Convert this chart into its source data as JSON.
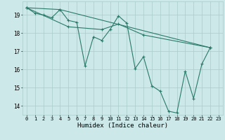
{
  "xlabel": "Humidex (Indice chaleur)",
  "bg_color": "#cce8e8",
  "grid_color": "#aacccc",
  "line_color": "#2a7a6a",
  "xlim": [
    -0.5,
    23.5
  ],
  "ylim": [
    13.5,
    19.75
  ],
  "yticks": [
    14,
    15,
    16,
    17,
    18,
    19
  ],
  "xticks": [
    0,
    1,
    2,
    3,
    4,
    5,
    6,
    7,
    8,
    9,
    10,
    11,
    12,
    13,
    14,
    15,
    16,
    17,
    18,
    19,
    20,
    21,
    22,
    23
  ],
  "line_main": [
    [
      0,
      19.4
    ],
    [
      1,
      19.1
    ],
    [
      2,
      19.0
    ],
    [
      3,
      18.85
    ],
    [
      4,
      19.3
    ],
    [
      5,
      18.7
    ],
    [
      6,
      18.6
    ],
    [
      7,
      16.2
    ],
    [
      8,
      17.8
    ],
    [
      9,
      17.6
    ],
    [
      10,
      18.2
    ],
    [
      11,
      18.95
    ],
    [
      12,
      18.55
    ],
    [
      13,
      16.05
    ],
    [
      14,
      16.7
    ],
    [
      15,
      15.1
    ],
    [
      16,
      14.8
    ],
    [
      17,
      13.7
    ],
    [
      18,
      13.6
    ],
    [
      19,
      15.9
    ],
    [
      20,
      14.4
    ],
    [
      21,
      16.3
    ],
    [
      22,
      17.2
    ]
  ],
  "line_upper": [
    [
      0,
      19.4
    ],
    [
      4,
      19.3
    ],
    [
      22,
      17.2
    ]
  ],
  "line_mid": [
    [
      0,
      19.4
    ],
    [
      5,
      18.35
    ],
    [
      9,
      18.2
    ],
    [
      11,
      18.5
    ],
    [
      14,
      17.9
    ],
    [
      22,
      17.2
    ]
  ]
}
